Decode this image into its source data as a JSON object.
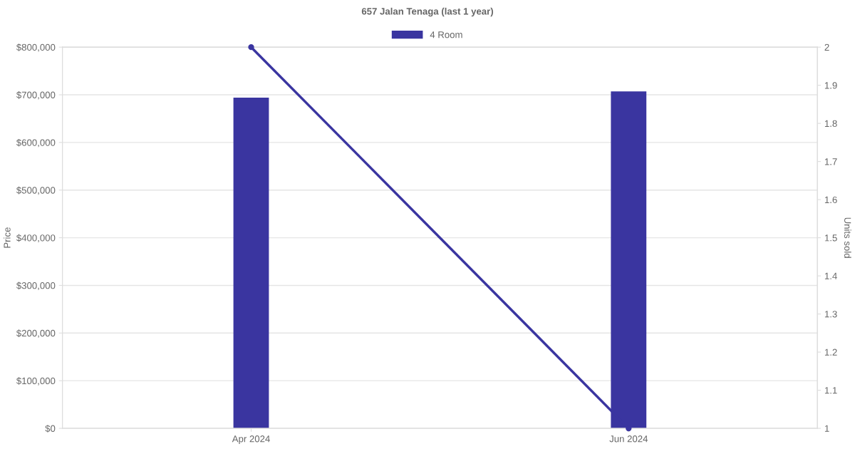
{
  "chart_data": {
    "type": "bar",
    "title": "657 Jalan Tenaga (last 1 year)",
    "ylabel": "Price",
    "y2label": "Units sold",
    "categories": [
      "Apr 2024",
      "Jun 2024"
    ],
    "series": [
      {
        "name": "4 Room",
        "color": "#3a35a0",
        "values": [
          694000,
          707000
        ]
      },
      {
        "type": "line",
        "axis": "y2",
        "color": "#3a35a0",
        "values": [
          2,
          1
        ],
        "marker": "circle"
      }
    ],
    "ylim": [
      0,
      800000
    ],
    "yticks": [
      {
        "value": 0,
        "label": "$0"
      },
      {
        "value": 100000,
        "label": "$100,000"
      },
      {
        "value": 200000,
        "label": "$200,000"
      },
      {
        "value": 300000,
        "label": "$300,000"
      },
      {
        "value": 400000,
        "label": "$400,000"
      },
      {
        "value": 500000,
        "label": "$500,000"
      },
      {
        "value": 600000,
        "label": "$600,000"
      },
      {
        "value": 700000,
        "label": "$700,000"
      },
      {
        "value": 800000,
        "label": "$800,000"
      }
    ],
    "y2lim": [
      1,
      2
    ],
    "y2ticks": [
      1,
      1.1,
      1.2,
      1.3,
      1.4,
      1.5,
      1.6,
      1.7,
      1.8,
      1.9,
      2
    ],
    "grid": "y",
    "legend": "top"
  }
}
